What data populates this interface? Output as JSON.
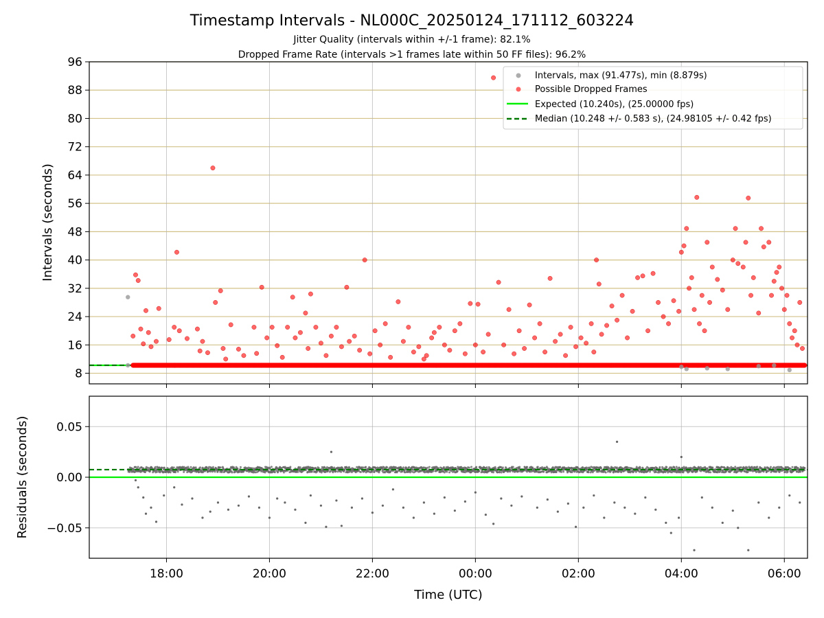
{
  "figure": {
    "title": "Timestamp Intervals - NL000C_20250124_171112_603224",
    "subtitle_1": "Jitter Quality (intervals within +/-1 frame): 82.1%",
    "subtitle_2": "Dropped Frame Rate (intervals >1 frames late within 50 FF files): 96.2%"
  },
  "chart_data": [
    {
      "type": "scatter",
      "panel": "intervals",
      "ylabel": "Intervals (seconds)",
      "ylim": [
        5,
        96
      ],
      "yticks": [
        "8",
        "16",
        "24",
        "32",
        "40",
        "48",
        "56",
        "64",
        "72",
        "80",
        "88",
        "96"
      ],
      "grid": "horizontal gridlines (tan) and vertical gridlines (gray)",
      "legend_position": "top-right",
      "legend": [
        "Intervals, max (91.477s), min (8.879s)",
        "Possible Dropped Frames",
        "Expected (10.240s), (25.00000 fps)",
        "Median (10.248 +/- 0.583 s), (24.98105 +/- 0.42 fps)"
      ],
      "x_unit": "hours from 00:00 UTC (negative = before midnight)",
      "lines": {
        "expected": 10.24,
        "median": 10.248
      },
      "colors": {
        "intervals": "#999999",
        "dropped": "#ff0000",
        "expected": "#00ee00",
        "median": "#007700"
      },
      "intervals_points": [
        [
          -6.75,
          29.5
        ],
        [
          -6.75,
          10.24
        ],
        [
          4.0,
          9.8
        ],
        [
          4.1,
          9.2
        ],
        [
          4.5,
          9.4
        ],
        [
          4.9,
          9.2
        ],
        [
          5.5,
          10.0
        ],
        [
          5.8,
          10.2
        ],
        [
          6.1,
          8.9
        ]
      ],
      "dropped_points": [
        [
          -6.65,
          18.5
        ],
        [
          -6.6,
          35.8
        ],
        [
          -6.55,
          34.2
        ],
        [
          -6.5,
          20.5
        ],
        [
          -6.45,
          16.3
        ],
        [
          -6.4,
          25.7
        ],
        [
          -6.35,
          19.5
        ],
        [
          -6.3,
          15.5
        ],
        [
          -6.2,
          17.0
        ],
        [
          -6.15,
          26.3
        ],
        [
          -5.95,
          17.5
        ],
        [
          -5.85,
          21.0
        ],
        [
          -5.8,
          42.2
        ],
        [
          -5.75,
          20.0
        ],
        [
          -5.6,
          17.8
        ],
        [
          -5.4,
          20.5
        ],
        [
          -5.35,
          14.3
        ],
        [
          -5.3,
          17.0
        ],
        [
          -5.2,
          13.8
        ],
        [
          -5.1,
          66.0
        ],
        [
          -5.05,
          28.0
        ],
        [
          -4.95,
          31.3
        ],
        [
          -4.9,
          15.0
        ],
        [
          -4.85,
          12.0
        ],
        [
          -4.75,
          21.7
        ],
        [
          -4.6,
          14.8
        ],
        [
          -4.5,
          13.0
        ],
        [
          -4.3,
          21.0
        ],
        [
          -4.25,
          13.6
        ],
        [
          -4.15,
          32.3
        ],
        [
          -4.05,
          18.0
        ],
        [
          -3.95,
          21.0
        ],
        [
          -3.85,
          15.8
        ],
        [
          -3.75,
          12.5
        ],
        [
          -3.65,
          21.0
        ],
        [
          -3.55,
          29.5
        ],
        [
          -3.5,
          18.0
        ],
        [
          -3.4,
          19.5
        ],
        [
          -3.3,
          25.0
        ],
        [
          -3.25,
          15.0
        ],
        [
          -3.2,
          30.4
        ],
        [
          -3.1,
          21.0
        ],
        [
          -3.0,
          16.5
        ],
        [
          -2.9,
          13.0
        ],
        [
          -2.8,
          18.5
        ],
        [
          -2.7,
          21.0
        ],
        [
          -2.6,
          15.5
        ],
        [
          -2.5,
          32.3
        ],
        [
          -2.45,
          17.0
        ],
        [
          -2.35,
          18.5
        ],
        [
          -2.25,
          14.5
        ],
        [
          -2.15,
          40.0
        ],
        [
          -2.05,
          13.5
        ],
        [
          -1.95,
          20.0
        ],
        [
          -1.85,
          16.0
        ],
        [
          -1.75,
          22.0
        ],
        [
          -1.65,
          12.5
        ],
        [
          -1.5,
          28.2
        ],
        [
          -1.4,
          17.0
        ],
        [
          -1.3,
          21.0
        ],
        [
          -1.2,
          14.0
        ],
        [
          -1.1,
          15.5
        ],
        [
          -1.0,
          12.0
        ],
        [
          -0.95,
          13.0
        ],
        [
          -0.85,
          18.0
        ],
        [
          -0.8,
          19.5
        ],
        [
          -0.7,
          21.0
        ],
        [
          -0.6,
          16.0
        ],
        [
          -0.5,
          14.5
        ],
        [
          -0.4,
          20.0
        ],
        [
          -0.3,
          22.0
        ],
        [
          -0.2,
          13.5
        ],
        [
          -0.1,
          27.7
        ],
        [
          0.0,
          16.0
        ],
        [
          0.05,
          27.5
        ],
        [
          0.15,
          14.0
        ],
        [
          0.25,
          19.0
        ],
        [
          0.35,
          91.5
        ],
        [
          0.45,
          33.7
        ],
        [
          0.55,
          16.0
        ],
        [
          0.65,
          26.0
        ],
        [
          0.75,
          13.5
        ],
        [
          0.85,
          20.0
        ],
        [
          0.95,
          15.0
        ],
        [
          1.05,
          27.3
        ],
        [
          1.15,
          18.0
        ],
        [
          1.25,
          22.0
        ],
        [
          1.35,
          14.0
        ],
        [
          1.45,
          34.8
        ],
        [
          1.55,
          17.0
        ],
        [
          1.65,
          19.0
        ],
        [
          1.75,
          13.0
        ],
        [
          1.85,
          21.0
        ],
        [
          1.95,
          15.5
        ],
        [
          2.05,
          18.0
        ],
        [
          2.15,
          16.5
        ],
        [
          2.25,
          22.0
        ],
        [
          2.3,
          14.0
        ],
        [
          2.35,
          40.0
        ],
        [
          2.4,
          33.2
        ],
        [
          2.45,
          19.0
        ],
        [
          2.55,
          21.5
        ],
        [
          2.65,
          27.0
        ],
        [
          2.75,
          23.0
        ],
        [
          2.85,
          30.0
        ],
        [
          2.95,
          18.0
        ],
        [
          3.05,
          25.5
        ],
        [
          3.15,
          35.0
        ],
        [
          3.25,
          35.5
        ],
        [
          3.35,
          20.0
        ],
        [
          3.45,
          36.2
        ],
        [
          3.55,
          28.0
        ],
        [
          3.65,
          24.0
        ],
        [
          3.75,
          22.0
        ],
        [
          3.85,
          28.5
        ],
        [
          3.95,
          25.5
        ],
        [
          4.0,
          42.2
        ],
        [
          4.05,
          44.0
        ],
        [
          4.1,
          48.9
        ],
        [
          4.15,
          32.0
        ],
        [
          4.2,
          35.0
        ],
        [
          4.25,
          26.0
        ],
        [
          4.3,
          57.7
        ],
        [
          4.35,
          22.0
        ],
        [
          4.4,
          30.0
        ],
        [
          4.45,
          20.0
        ],
        [
          4.5,
          45.0
        ],
        [
          4.55,
          28.0
        ],
        [
          4.6,
          38.0
        ],
        [
          4.7,
          34.5
        ],
        [
          4.8,
          31.5
        ],
        [
          4.9,
          26.0
        ],
        [
          5.0,
          40.0
        ],
        [
          5.05,
          48.9
        ],
        [
          5.1,
          39.0
        ],
        [
          5.2,
          38.0
        ],
        [
          5.25,
          45.0
        ],
        [
          5.3,
          57.5
        ],
        [
          5.35,
          30.0
        ],
        [
          5.4,
          35.0
        ],
        [
          5.5,
          25.0
        ],
        [
          5.55,
          48.9
        ],
        [
          5.6,
          43.7
        ],
        [
          5.7,
          45.0
        ],
        [
          5.75,
          30.0
        ],
        [
          5.8,
          34.0
        ],
        [
          5.85,
          36.5
        ],
        [
          5.9,
          38.0
        ],
        [
          5.95,
          32.0
        ],
        [
          6.0,
          26.0
        ],
        [
          6.05,
          30.0
        ],
        [
          6.1,
          22.0
        ],
        [
          6.15,
          18.0
        ],
        [
          6.2,
          20.0
        ],
        [
          6.25,
          16.0
        ],
        [
          6.3,
          28.0
        ],
        [
          6.35,
          15.0
        ]
      ],
      "dropped_dense_baseline": {
        "value": 10.24,
        "x_range": [
          -6.65,
          6.4
        ]
      }
    },
    {
      "type": "scatter",
      "panel": "residuals",
      "xlabel": "Time (UTC)",
      "ylabel": "Residuals (seconds)",
      "ylim": [
        -0.08,
        0.08
      ],
      "yticks": [
        "−0.05",
        "0.00",
        "0.05"
      ],
      "xticks": [
        "18:00",
        "20:00",
        "22:00",
        "00:00",
        "02:00",
        "04:00",
        "06:00"
      ],
      "xlim_hours": [
        -7.5,
        6.45
      ],
      "lines": {
        "expected": 0.0,
        "median": 0.0075
      },
      "points": [
        [
          -6.6,
          -0.003
        ],
        [
          -6.55,
          -0.01
        ],
        [
          -6.45,
          -0.02
        ],
        [
          -6.4,
          -0.036
        ],
        [
          -6.3,
          -0.03
        ],
        [
          -6.2,
          -0.044
        ],
        [
          -6.05,
          -0.018
        ],
        [
          -5.85,
          -0.01
        ],
        [
          -5.7,
          -0.027
        ],
        [
          -5.5,
          -0.021
        ],
        [
          -5.3,
          -0.04
        ],
        [
          -5.15,
          -0.034
        ],
        [
          -5.0,
          -0.025
        ],
        [
          -4.8,
          -0.032
        ],
        [
          -4.6,
          -0.028
        ],
        [
          -4.4,
          -0.019
        ],
        [
          -4.2,
          -0.03
        ],
        [
          -4.0,
          -0.04
        ],
        [
          -3.85,
          -0.021
        ],
        [
          -3.7,
          -0.025
        ],
        [
          -3.5,
          -0.032
        ],
        [
          -3.3,
          -0.045
        ],
        [
          -3.2,
          -0.018
        ],
        [
          -3.0,
          -0.028
        ],
        [
          -2.9,
          -0.049
        ],
        [
          -2.8,
          0.025
        ],
        [
          -2.7,
          -0.023
        ],
        [
          -2.6,
          -0.048
        ],
        [
          -2.4,
          -0.03
        ],
        [
          -2.2,
          -0.021
        ],
        [
          -2.0,
          -0.035
        ],
        [
          -1.8,
          -0.028
        ],
        [
          -1.6,
          -0.012
        ],
        [
          -1.4,
          -0.03
        ],
        [
          -1.2,
          -0.04
        ],
        [
          -1.0,
          -0.025
        ],
        [
          -0.8,
          -0.036
        ],
        [
          -0.6,
          -0.02
        ],
        [
          -0.4,
          -0.033
        ],
        [
          -0.2,
          -0.024
        ],
        [
          0.0,
          -0.015
        ],
        [
          0.2,
          -0.037
        ],
        [
          0.35,
          -0.046
        ],
        [
          0.5,
          -0.021
        ],
        [
          0.7,
          -0.028
        ],
        [
          0.9,
          -0.019
        ],
        [
          1.0,
          0.01
        ],
        [
          1.2,
          -0.03
        ],
        [
          1.4,
          -0.022
        ],
        [
          1.6,
          -0.034
        ],
        [
          1.8,
          -0.026
        ],
        [
          1.95,
          -0.049
        ],
        [
          2.1,
          -0.03
        ],
        [
          2.3,
          -0.018
        ],
        [
          2.5,
          -0.04
        ],
        [
          2.7,
          -0.025
        ],
        [
          2.75,
          0.035
        ],
        [
          2.9,
          -0.03
        ],
        [
          3.1,
          -0.036
        ],
        [
          3.3,
          -0.02
        ],
        [
          3.5,
          -0.032
        ],
        [
          3.7,
          -0.045
        ],
        [
          3.8,
          -0.055
        ],
        [
          3.95,
          -0.04
        ],
        [
          4.0,
          0.02
        ],
        [
          4.25,
          -0.072
        ],
        [
          4.4,
          -0.02
        ],
        [
          4.6,
          -0.03
        ],
        [
          4.8,
          -0.045
        ],
        [
          5.0,
          -0.033
        ],
        [
          5.1,
          -0.05
        ],
        [
          5.3,
          -0.072
        ],
        [
          5.5,
          -0.025
        ],
        [
          5.7,
          -0.04
        ],
        [
          5.9,
          -0.03
        ],
        [
          6.1,
          -0.018
        ],
        [
          6.3,
          -0.025
        ]
      ],
      "dense_band": {
        "center": 0.0075,
        "x_range": [
          -6.75,
          6.4
        ]
      }
    }
  ]
}
